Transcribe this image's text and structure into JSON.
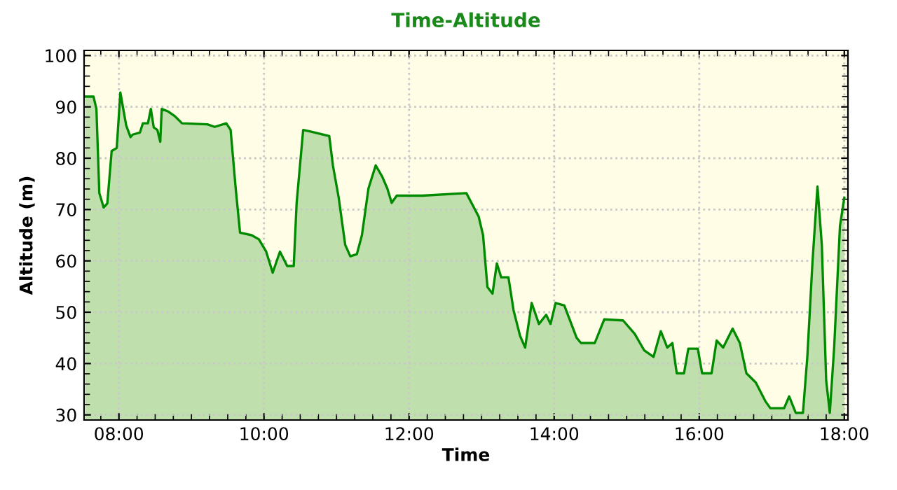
{
  "chart_data": {
    "type": "area",
    "title": "Time-Altitude",
    "xlabel": "Time",
    "ylabel": "Altitude (m)",
    "xlim": [
      7.52,
      18.05
    ],
    "ylim": [
      29,
      101
    ],
    "xticks": [
      {
        "value": 8,
        "label": "08:00"
      },
      {
        "value": 10,
        "label": "10:00"
      },
      {
        "value": 12,
        "label": "12:00"
      },
      {
        "value": 14,
        "label": "14:00"
      },
      {
        "value": 16,
        "label": "16:00"
      },
      {
        "value": 18,
        "label": "18:00"
      }
    ],
    "yticks": [
      30,
      40,
      50,
      60,
      70,
      80,
      90,
      100
    ],
    "grid": true,
    "series": [
      {
        "color": "#008a00",
        "x": [
          7.54,
          7.65,
          7.69,
          7.73,
          7.79,
          7.84,
          7.9,
          7.97,
          8.02,
          8.06,
          8.1,
          8.16,
          8.19,
          8.29,
          8.33,
          8.4,
          8.44,
          8.48,
          8.53,
          8.57,
          8.59,
          8.68,
          8.77,
          8.87,
          9.22,
          9.32,
          9.48,
          9.54,
          9.61,
          9.67,
          9.83,
          9.93,
          10.03,
          10.12,
          10.22,
          10.32,
          10.41,
          10.45,
          10.54,
          10.64,
          10.9,
          10.95,
          11.03,
          11.12,
          11.19,
          11.28,
          11.35,
          11.44,
          11.54,
          11.63,
          11.7,
          11.76,
          11.83,
          12.18,
          12.79,
          12.86,
          12.96,
          13.02,
          13.08,
          13.15,
          13.21,
          13.27,
          13.37,
          13.44,
          13.53,
          13.6,
          13.69,
          13.79,
          13.89,
          13.95,
          14.02,
          14.14,
          14.31,
          14.37,
          14.56,
          14.69,
          14.95,
          15.11,
          15.24,
          15.37,
          15.47,
          15.56,
          15.63,
          15.69,
          15.79,
          15.85,
          15.98,
          16.04,
          16.17,
          16.24,
          16.33,
          16.46,
          16.56,
          16.65,
          16.78,
          16.91,
          16.98,
          17.17,
          17.24,
          17.33,
          17.43,
          17.49,
          17.56,
          17.63,
          17.69,
          17.75,
          17.8,
          17.86,
          17.94,
          18.0
        ],
        "values": [
          92,
          92,
          89.6,
          73.2,
          70.4,
          71.2,
          81.4,
          82,
          92.8,
          89.6,
          86.4,
          84.1,
          84.6,
          85,
          86.8,
          86.8,
          89.6,
          86,
          85.5,
          83.2,
          89.6,
          89.1,
          88.2,
          86.8,
          86.6,
          86.1,
          86.8,
          85.5,
          74.1,
          65.5,
          65,
          64.2,
          61.8,
          57.7,
          61.8,
          59,
          59,
          71.3,
          85.5,
          85.2,
          84.3,
          78.6,
          72.3,
          63.1,
          60.9,
          61.3,
          65,
          74.1,
          78.6,
          76.4,
          74.1,
          71.3,
          72.7,
          72.7,
          73.2,
          71.3,
          68.6,
          65,
          54.9,
          53.6,
          59.5,
          56.8,
          56.8,
          50.4,
          45.4,
          43.1,
          51.8,
          47.7,
          49.5,
          47.7,
          51.8,
          51.3,
          45,
          44,
          44,
          48.6,
          48.4,
          45.8,
          42.6,
          41.3,
          46.3,
          43.1,
          44,
          38.1,
          38.1,
          42.9,
          42.9,
          38.1,
          38.1,
          44.5,
          43.1,
          46.8,
          44,
          38.1,
          36.3,
          32.7,
          31.3,
          31.3,
          33.6,
          30.4,
          30.4,
          41.3,
          59.5,
          74.5,
          63.1,
          36.7,
          30.4,
          43.1,
          66.8,
          72.3
        ]
      }
    ]
  }
}
